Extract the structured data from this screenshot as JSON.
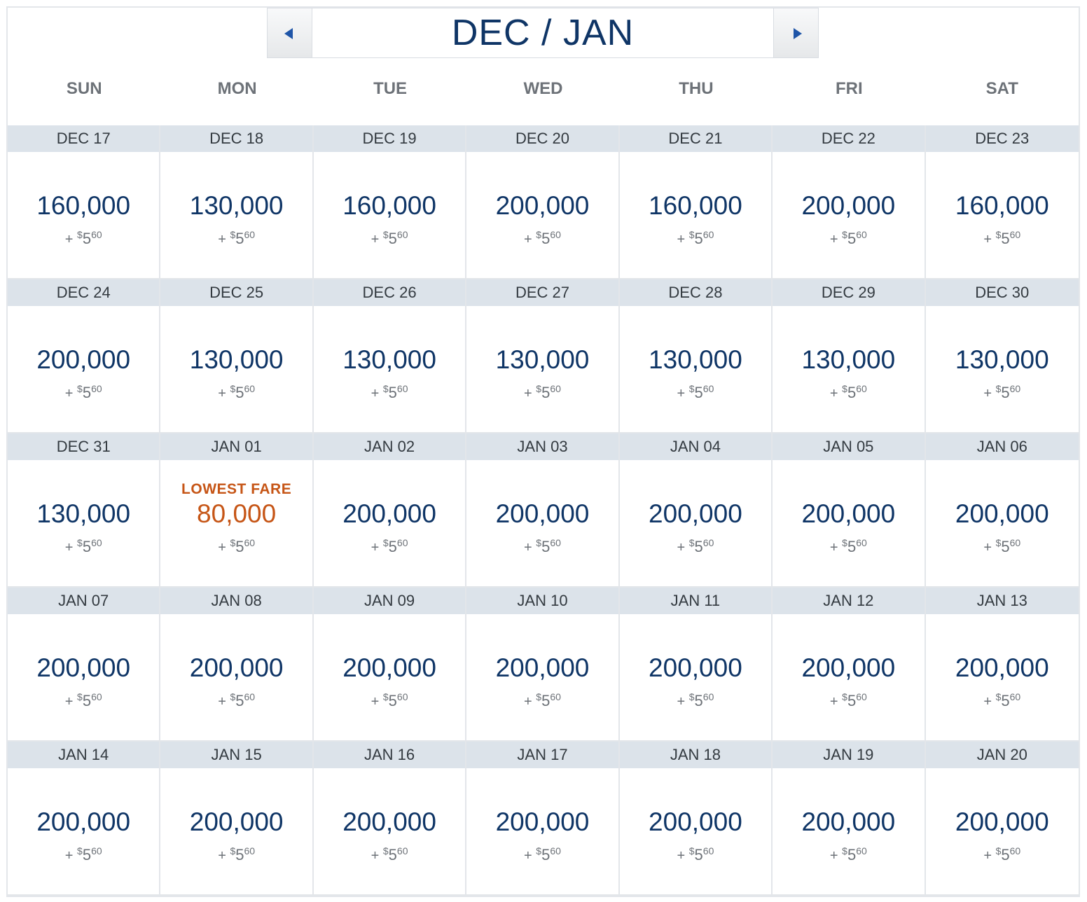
{
  "nav": {
    "title": "DEC / JAN",
    "prev_icon": "triangle-left-icon",
    "next_icon": "triangle-right-icon"
  },
  "weekdays": [
    "SUN",
    "MON",
    "TUE",
    "WED",
    "THU",
    "FRI",
    "SAT"
  ],
  "colors": {
    "title": "#0f3566",
    "fare": "#0f3566",
    "lowest": "#c65516",
    "date_bar": "#dce3ea",
    "arrow": "#1f55a8"
  },
  "fee": {
    "plus": "+",
    "currency": "$",
    "whole": "5",
    "cents": "60"
  },
  "lowest_label": "LOWEST FARE",
  "days": [
    {
      "date": "DEC 17",
      "miles": "160,000"
    },
    {
      "date": "DEC 18",
      "miles": "130,000"
    },
    {
      "date": "DEC 19",
      "miles": "160,000"
    },
    {
      "date": "DEC 20",
      "miles": "200,000"
    },
    {
      "date": "DEC 21",
      "miles": "160,000"
    },
    {
      "date": "DEC 22",
      "miles": "200,000"
    },
    {
      "date": "DEC 23",
      "miles": "160,000"
    },
    {
      "date": "DEC 24",
      "miles": "200,000"
    },
    {
      "date": "DEC 25",
      "miles": "130,000"
    },
    {
      "date": "DEC 26",
      "miles": "130,000"
    },
    {
      "date": "DEC 27",
      "miles": "130,000"
    },
    {
      "date": "DEC 28",
      "miles": "130,000"
    },
    {
      "date": "DEC 29",
      "miles": "130,000"
    },
    {
      "date": "DEC 30",
      "miles": "130,000"
    },
    {
      "date": "DEC 31",
      "miles": "130,000"
    },
    {
      "date": "JAN 01",
      "miles": "80,000",
      "lowest": true
    },
    {
      "date": "JAN 02",
      "miles": "200,000"
    },
    {
      "date": "JAN 03",
      "miles": "200,000"
    },
    {
      "date": "JAN 04",
      "miles": "200,000"
    },
    {
      "date": "JAN 05",
      "miles": "200,000"
    },
    {
      "date": "JAN 06",
      "miles": "200,000"
    },
    {
      "date": "JAN 07",
      "miles": "200,000"
    },
    {
      "date": "JAN 08",
      "miles": "200,000"
    },
    {
      "date": "JAN 09",
      "miles": "200,000"
    },
    {
      "date": "JAN 10",
      "miles": "200,000"
    },
    {
      "date": "JAN 11",
      "miles": "200,000"
    },
    {
      "date": "JAN 12",
      "miles": "200,000"
    },
    {
      "date": "JAN 13",
      "miles": "200,000"
    },
    {
      "date": "JAN 14",
      "miles": "200,000"
    },
    {
      "date": "JAN 15",
      "miles": "200,000"
    },
    {
      "date": "JAN 16",
      "miles": "200,000"
    },
    {
      "date": "JAN 17",
      "miles": "200,000"
    },
    {
      "date": "JAN 18",
      "miles": "200,000"
    },
    {
      "date": "JAN 19",
      "miles": "200,000"
    },
    {
      "date": "JAN 20",
      "miles": "200,000"
    }
  ]
}
